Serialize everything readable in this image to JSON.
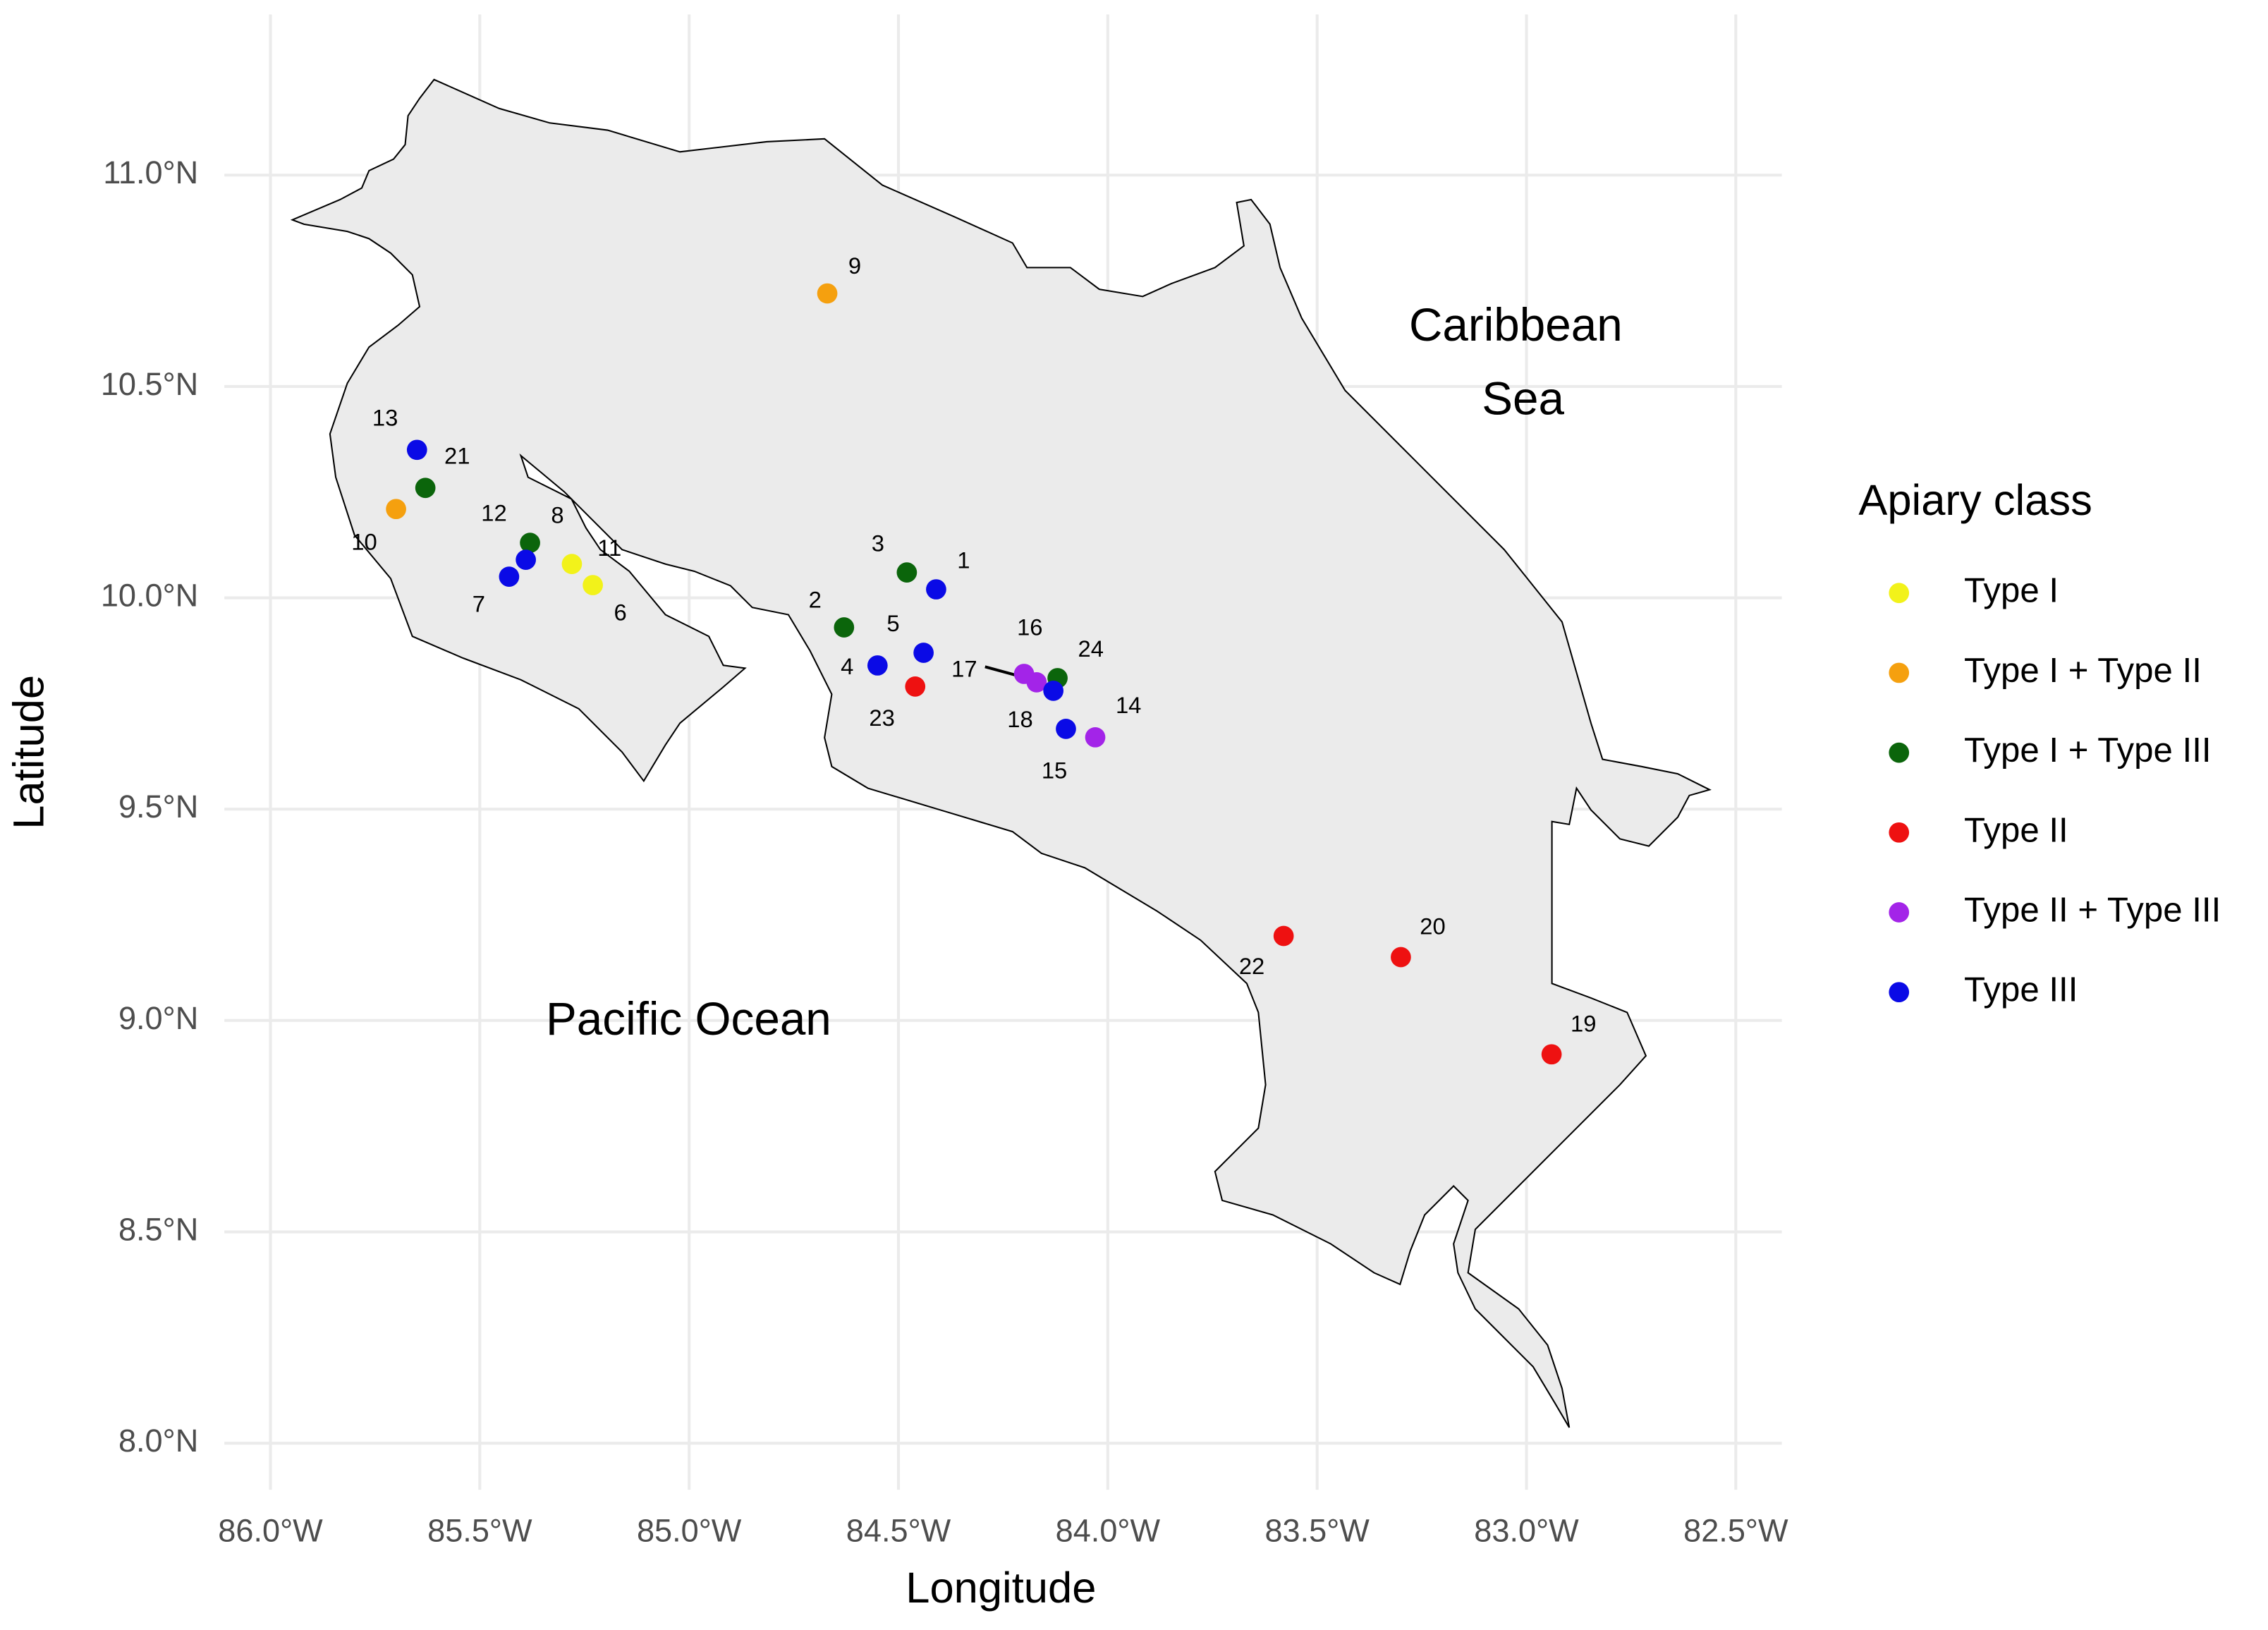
{
  "chart_data": {
    "type": "scatter",
    "x_label": "Longitude",
    "y_label": "Latitude",
    "legend_title": "Apiary class",
    "legend_position": "right",
    "grid": true,
    "xlim": [
      -86.11,
      -82.39
    ],
    "ylim": [
      7.89,
      11.38
    ],
    "xticks": [
      {
        "value": -86.0,
        "label": "86.0°W"
      },
      {
        "value": -85.5,
        "label": "85.5°W"
      },
      {
        "value": -85.0,
        "label": "85.0°W"
      },
      {
        "value": -84.5,
        "label": "84.5°W"
      },
      {
        "value": -84.0,
        "label": "84.0°W"
      },
      {
        "value": -83.5,
        "label": "83.5°W"
      },
      {
        "value": -83.0,
        "label": "83.0°W"
      },
      {
        "value": -82.5,
        "label": "82.5°W"
      }
    ],
    "yticks": [
      {
        "value": 8.0,
        "label": "8.0°N"
      },
      {
        "value": 8.5,
        "label": "8.5°N"
      },
      {
        "value": 9.0,
        "label": "9.0°N"
      },
      {
        "value": 9.5,
        "label": "9.5°N"
      },
      {
        "value": 10.0,
        "label": "10.0°N"
      },
      {
        "value": 10.5,
        "label": "10.5°N"
      },
      {
        "value": 11.0,
        "label": "11.0°N"
      }
    ],
    "annotations": [
      "Caribbean",
      "Sea",
      "Pacific Ocean"
    ],
    "series": [
      {
        "name": "Type I",
        "color": "#f2f21a",
        "labels": [
          "6",
          "11"
        ],
        "x": [
          -85.23,
          -85.28
        ],
        "y": [
          10.03,
          10.08
        ]
      },
      {
        "name": "Type I + Type II",
        "color": "#f5a00f",
        "labels": [
          "9",
          "10"
        ],
        "x": [
          -84.67,
          -85.7
        ],
        "y": [
          10.72,
          10.21
        ]
      },
      {
        "name": "Type I + Type III",
        "color": "#0b650b",
        "labels": [
          "2",
          "3",
          "8",
          "21",
          "24"
        ],
        "x": [
          -84.63,
          -84.48,
          -85.38,
          -85.63,
          -84.12
        ],
        "y": [
          9.93,
          10.06,
          10.13,
          10.26,
          9.81
        ]
      },
      {
        "name": "Type II",
        "color": "#ee1111",
        "labels": [
          "19",
          "20",
          "22",
          "23"
        ],
        "x": [
          -82.94,
          -83.3,
          -83.58,
          -84.46
        ],
        "y": [
          8.92,
          9.15,
          9.2,
          9.79
        ]
      },
      {
        "name": "Type II + Type III",
        "color": "#a324e8",
        "labels": [
          "14",
          "16",
          "17"
        ],
        "x": [
          -84.03,
          -84.2,
          -84.17
        ],
        "y": [
          9.67,
          9.82,
          9.8
        ]
      },
      {
        "name": "Type III",
        "color": "#0a0ae6",
        "labels": [
          "1",
          "4",
          "5",
          "7",
          "12",
          "13",
          "15",
          "18"
        ],
        "x": [
          -84.41,
          -84.55,
          -84.44,
          -85.43,
          -85.39,
          -85.65,
          -84.1,
          -84.13
        ],
        "y": [
          10.02,
          9.84,
          9.87,
          10.05,
          10.09,
          10.35,
          9.69,
          9.78
        ]
      }
    ]
  }
}
